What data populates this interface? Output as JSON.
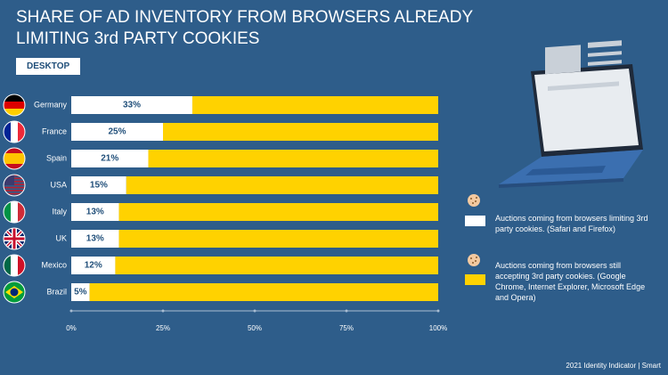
{
  "chart_data": {
    "type": "bar",
    "orientation": "horizontal",
    "stacked": true,
    "title": "SHARE OF AD INVENTORY FROM BROWSERS ALREADY LIMITING 3rd PARTY COOKIES",
    "subtitle": "DESKTOP",
    "source": "2021 Identity Indicator | Smart",
    "categories": [
      "Germany",
      "France",
      "Spain",
      "USA",
      "Italy",
      "UK",
      "Mexico",
      "Brazil"
    ],
    "series": [
      {
        "name": "Auctions coming from browsers limiting 3rd party cookies. (Safari and Firefox)",
        "color": "#ffffff",
        "values": [
          33,
          25,
          21,
          15,
          13,
          13,
          12,
          5
        ],
        "value_labels": [
          "33%",
          "25%",
          "21%",
          "15%",
          "13%",
          "13%",
          "12%",
          "5%"
        ]
      },
      {
        "name": "Auctions coming from browsers still accepting 3rd party cookies. (Google Chrome, Internet Explorer, Microsoft Edge and Opera)",
        "color": "#ffd200",
        "values": [
          67,
          75,
          79,
          85,
          87,
          87,
          88,
          95
        ]
      }
    ],
    "xlim": [
      0,
      100
    ],
    "xticks": [
      {
        "value": 0,
        "label": "0%"
      },
      {
        "value": 25,
        "label": "25%"
      },
      {
        "value": 50,
        "label": "50%"
      },
      {
        "value": 75,
        "label": "75%"
      },
      {
        "value": 100,
        "label": "100%"
      }
    ]
  }
}
